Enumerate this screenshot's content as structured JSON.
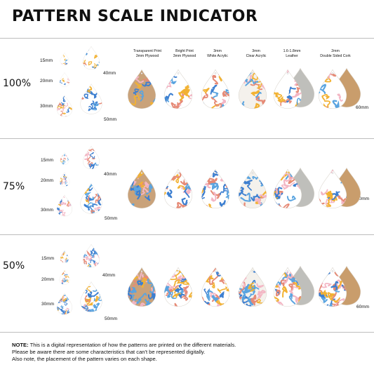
{
  "title": "PATTERN SCALE INDICATOR",
  "sizes": [
    "15mm",
    "20mm",
    "30mm",
    "40mm",
    "50mm",
    "60mm"
  ],
  "materials": [
    {
      "line1": "Transparent Print",
      "line2": "3mm Plywood"
    },
    {
      "line1": "Bright Print",
      "line2": "3mm Plywood"
    },
    {
      "line1": "3mm",
      "line2": "White Acrylic"
    },
    {
      "line1": "3mm",
      "line2": "Clear Acrylic"
    },
    {
      "line1": "1.6-1.8mm",
      "line2": "Leather"
    },
    {
      "line1": "2mm",
      "line2": "Double Sided Cork"
    }
  ],
  "scales": [
    {
      "label": "100%"
    },
    {
      "label": "75%"
    },
    {
      "label": "50%"
    }
  ],
  "note": {
    "label": "NOTE:",
    "line1": " This is a digital representation of how the patterns are printed on the different materials.",
    "line2": "Please be aware there are some characteristics that can't be represented digitally.",
    "line3": "Also note, the placement of the pattern varies on each shape."
  },
  "colors": {
    "plywood": "#c9a27a",
    "white": "#ffffff",
    "clear": "#f4f1ec",
    "leather": "#bfbfbb",
    "cork": "#c99d6c",
    "lines": [
      "#3d7fd0",
      "#f2b233",
      "#e68a76",
      "#f3b6c4",
      "#5aa4e0"
    ]
  }
}
